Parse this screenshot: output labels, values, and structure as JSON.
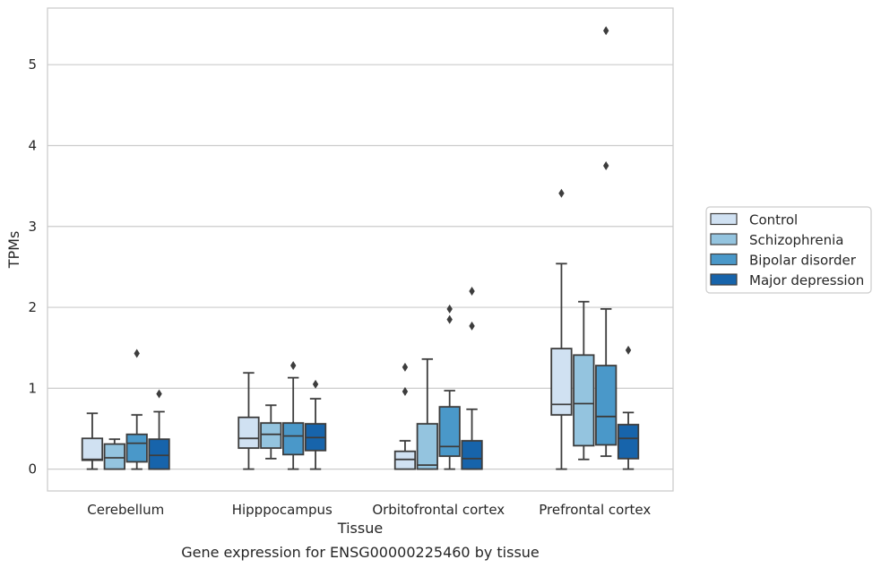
{
  "caption": "Gene expression for ENSG00000225460 by tissue",
  "chart_data": {
    "type": "boxplot",
    "xlabel": "Tissue",
    "ylabel": "TPMs",
    "ylim": [
      -0.27,
      5.7
    ],
    "yticks": [
      0,
      1,
      2,
      3,
      4,
      5
    ],
    "grid": "horizontal",
    "legend_position": "right",
    "categories": [
      "Cerebellum",
      "Hipppocampus",
      "Orbitofrontal cortex",
      "Prefrontal cortex"
    ],
    "series": [
      {
        "name": "Control",
        "color": "#d0e1f2",
        "boxes": [
          {
            "whislo": 0.0,
            "q1": 0.11,
            "med": 0.12,
            "q3": 0.38,
            "whishi": 0.69,
            "fliers": []
          },
          {
            "whislo": 0.0,
            "q1": 0.26,
            "med": 0.38,
            "q3": 0.64,
            "whishi": 1.19,
            "fliers": []
          },
          {
            "whislo": 0.0,
            "q1": 0.0,
            "med": 0.12,
            "q3": 0.22,
            "whishi": 0.35,
            "fliers": [
              0.96,
              1.26
            ]
          },
          {
            "whislo": 0.0,
            "q1": 0.67,
            "med": 0.8,
            "q3": 1.49,
            "whishi": 2.54,
            "fliers": [
              3.41
            ]
          }
        ]
      },
      {
        "name": "Schizophrenia",
        "color": "#94c4df",
        "boxes": [
          {
            "whislo": 0.0,
            "q1": 0.0,
            "med": 0.14,
            "q3": 0.31,
            "whishi": 0.37,
            "fliers": []
          },
          {
            "whislo": 0.13,
            "q1": 0.26,
            "med": 0.43,
            "q3": 0.57,
            "whishi": 0.79,
            "fliers": []
          },
          {
            "whislo": 0.0,
            "q1": 0.0,
            "med": 0.05,
            "q3": 0.56,
            "whishi": 1.36,
            "fliers": []
          },
          {
            "whislo": 0.12,
            "q1": 0.29,
            "med": 0.81,
            "q3": 1.41,
            "whishi": 2.07,
            "fliers": []
          }
        ]
      },
      {
        "name": "Bipolar disorder",
        "color": "#4a98c9",
        "boxes": [
          {
            "whislo": 0.0,
            "q1": 0.09,
            "med": 0.32,
            "q3": 0.43,
            "whishi": 0.67,
            "fliers": [
              1.43
            ]
          },
          {
            "whislo": 0.0,
            "q1": 0.18,
            "med": 0.41,
            "q3": 0.57,
            "whishi": 1.13,
            "fliers": [
              1.28
            ]
          },
          {
            "whislo": 0.0,
            "q1": 0.16,
            "med": 0.28,
            "q3": 0.77,
            "whishi": 0.97,
            "fliers": [
              1.85,
              1.98
            ]
          },
          {
            "whislo": 0.16,
            "q1": 0.3,
            "med": 0.65,
            "q3": 1.28,
            "whishi": 1.98,
            "fliers": [
              3.75,
              5.42
            ]
          }
        ]
      },
      {
        "name": "Major depression",
        "color": "#1764ab",
        "boxes": [
          {
            "whislo": 0.0,
            "q1": 0.0,
            "med": 0.17,
            "q3": 0.37,
            "whishi": 0.71,
            "fliers": [
              0.93
            ]
          },
          {
            "whislo": 0.0,
            "q1": 0.23,
            "med": 0.39,
            "q3": 0.56,
            "whishi": 0.87,
            "fliers": [
              1.05
            ]
          },
          {
            "whislo": 0.0,
            "q1": 0.0,
            "med": 0.13,
            "q3": 0.35,
            "whishi": 0.74,
            "fliers": [
              1.77,
              2.2
            ]
          },
          {
            "whislo": 0.0,
            "q1": 0.13,
            "med": 0.38,
            "q3": 0.55,
            "whishi": 0.7,
            "fliers": [
              1.47
            ]
          }
        ]
      }
    ]
  }
}
